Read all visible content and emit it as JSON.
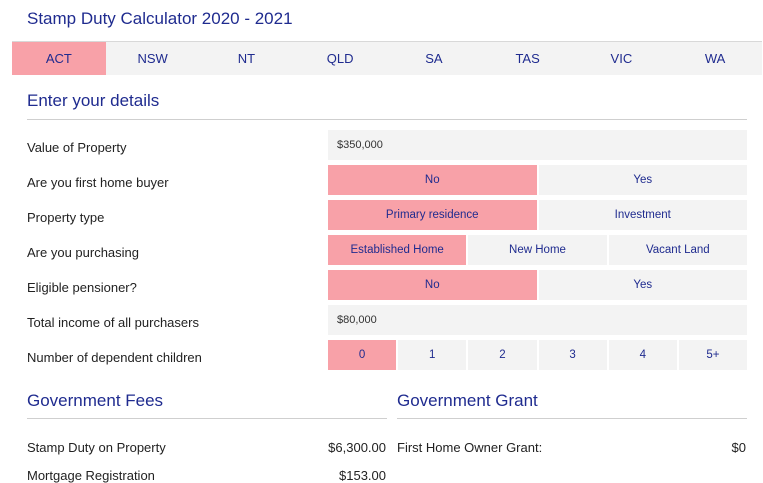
{
  "header": {
    "title": "Stamp Duty Calculator 2020 - 2021"
  },
  "tabs": [
    {
      "label": "ACT",
      "active": true
    },
    {
      "label": "NSW",
      "active": false
    },
    {
      "label": "NT",
      "active": false
    },
    {
      "label": "QLD",
      "active": false
    },
    {
      "label": "SA",
      "active": false
    },
    {
      "label": "TAS",
      "active": false
    },
    {
      "label": "VIC",
      "active": false
    },
    {
      "label": "WA",
      "active": false
    }
  ],
  "details": {
    "heading": "Enter your details",
    "value_of_property": {
      "label": "Value of Property",
      "value": "$350,000"
    },
    "first_home_buyer": {
      "label": "Are you first home buyer",
      "options": [
        "No",
        "Yes"
      ],
      "selected": "No"
    },
    "property_type": {
      "label": "Property type",
      "options": [
        "Primary residence",
        "Investment"
      ],
      "selected": "Primary residence"
    },
    "purchasing": {
      "label": "Are you purchasing",
      "options": [
        "Established Home",
        "New Home",
        "Vacant Land"
      ],
      "selected": "Established Home"
    },
    "eligible_pensioner": {
      "label": "Eligible pensioner?",
      "options": [
        "No",
        "Yes"
      ],
      "selected": "No"
    },
    "total_income": {
      "label": "Total income of all purchasers",
      "value": "$80,000"
    },
    "dependent_children": {
      "label": "Number of dependent children",
      "options": [
        "0",
        "1",
        "2",
        "3",
        "4",
        "5+"
      ],
      "selected": "0"
    }
  },
  "government_fees": {
    "heading": "Government Fees",
    "rows": [
      {
        "label": "Stamp Duty on Property",
        "value": "$6,300.00"
      },
      {
        "label": "Mortgage Registration",
        "value": "$153.00"
      }
    ]
  },
  "government_grant": {
    "heading": "Government Grant",
    "rows": [
      {
        "label": "First Home Owner Grant:",
        "value": "$0"
      }
    ]
  },
  "colors": {
    "accent": "#f8a1a8",
    "heading": "#1f2b8f",
    "field_bg": "#f3f3f3"
  }
}
